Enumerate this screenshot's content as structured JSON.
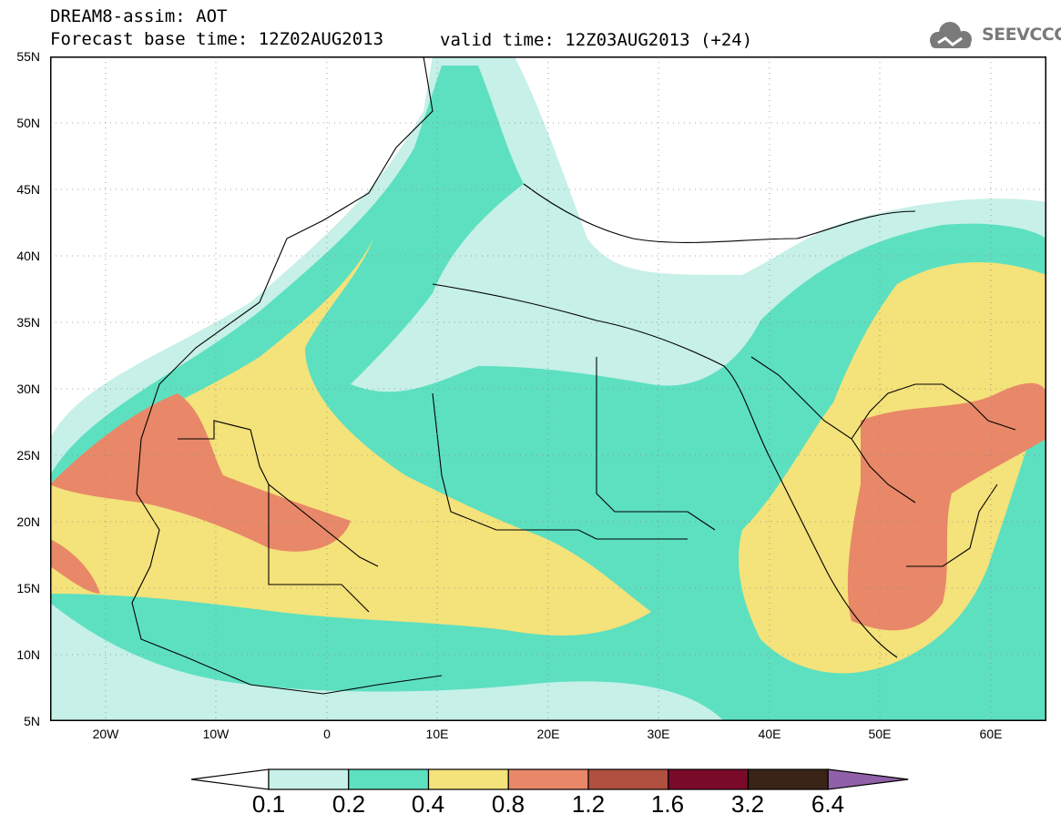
{
  "header": {
    "title": "DREAM8-assim: AOT",
    "base_time": "Forecast base time: 12Z02AUG2013",
    "valid_time": "valid time: 12Z03AUG2013 (+24)"
  },
  "logo": {
    "text": "SEEVCCC",
    "icon": "cloud-icon",
    "color": "#7a7a7a"
  },
  "axes": {
    "lat_labels": [
      "55N",
      "50N",
      "45N",
      "40N",
      "35N",
      "30N",
      "25N",
      "20N",
      "15N",
      "10N",
      "5N"
    ],
    "lon_labels": [
      "20W",
      "10W",
      "0",
      "10E",
      "20E",
      "30E",
      "40E",
      "50E",
      "60E"
    ],
    "lat_range": [
      5,
      55
    ],
    "lon_range": [
      -25,
      65
    ],
    "grid": "dotted"
  },
  "colorbar": {
    "labels": [
      "0.1",
      "0.2",
      "0.4",
      "0.8",
      "1.2",
      "1.6",
      "3.2",
      "6.4"
    ],
    "colors": [
      "#c6f0e8",
      "#5de0c0",
      "#f4e27a",
      "#e88868",
      "#b05040",
      "#7a0a2a",
      "#3a2418",
      "#9060a8"
    ]
  }
}
